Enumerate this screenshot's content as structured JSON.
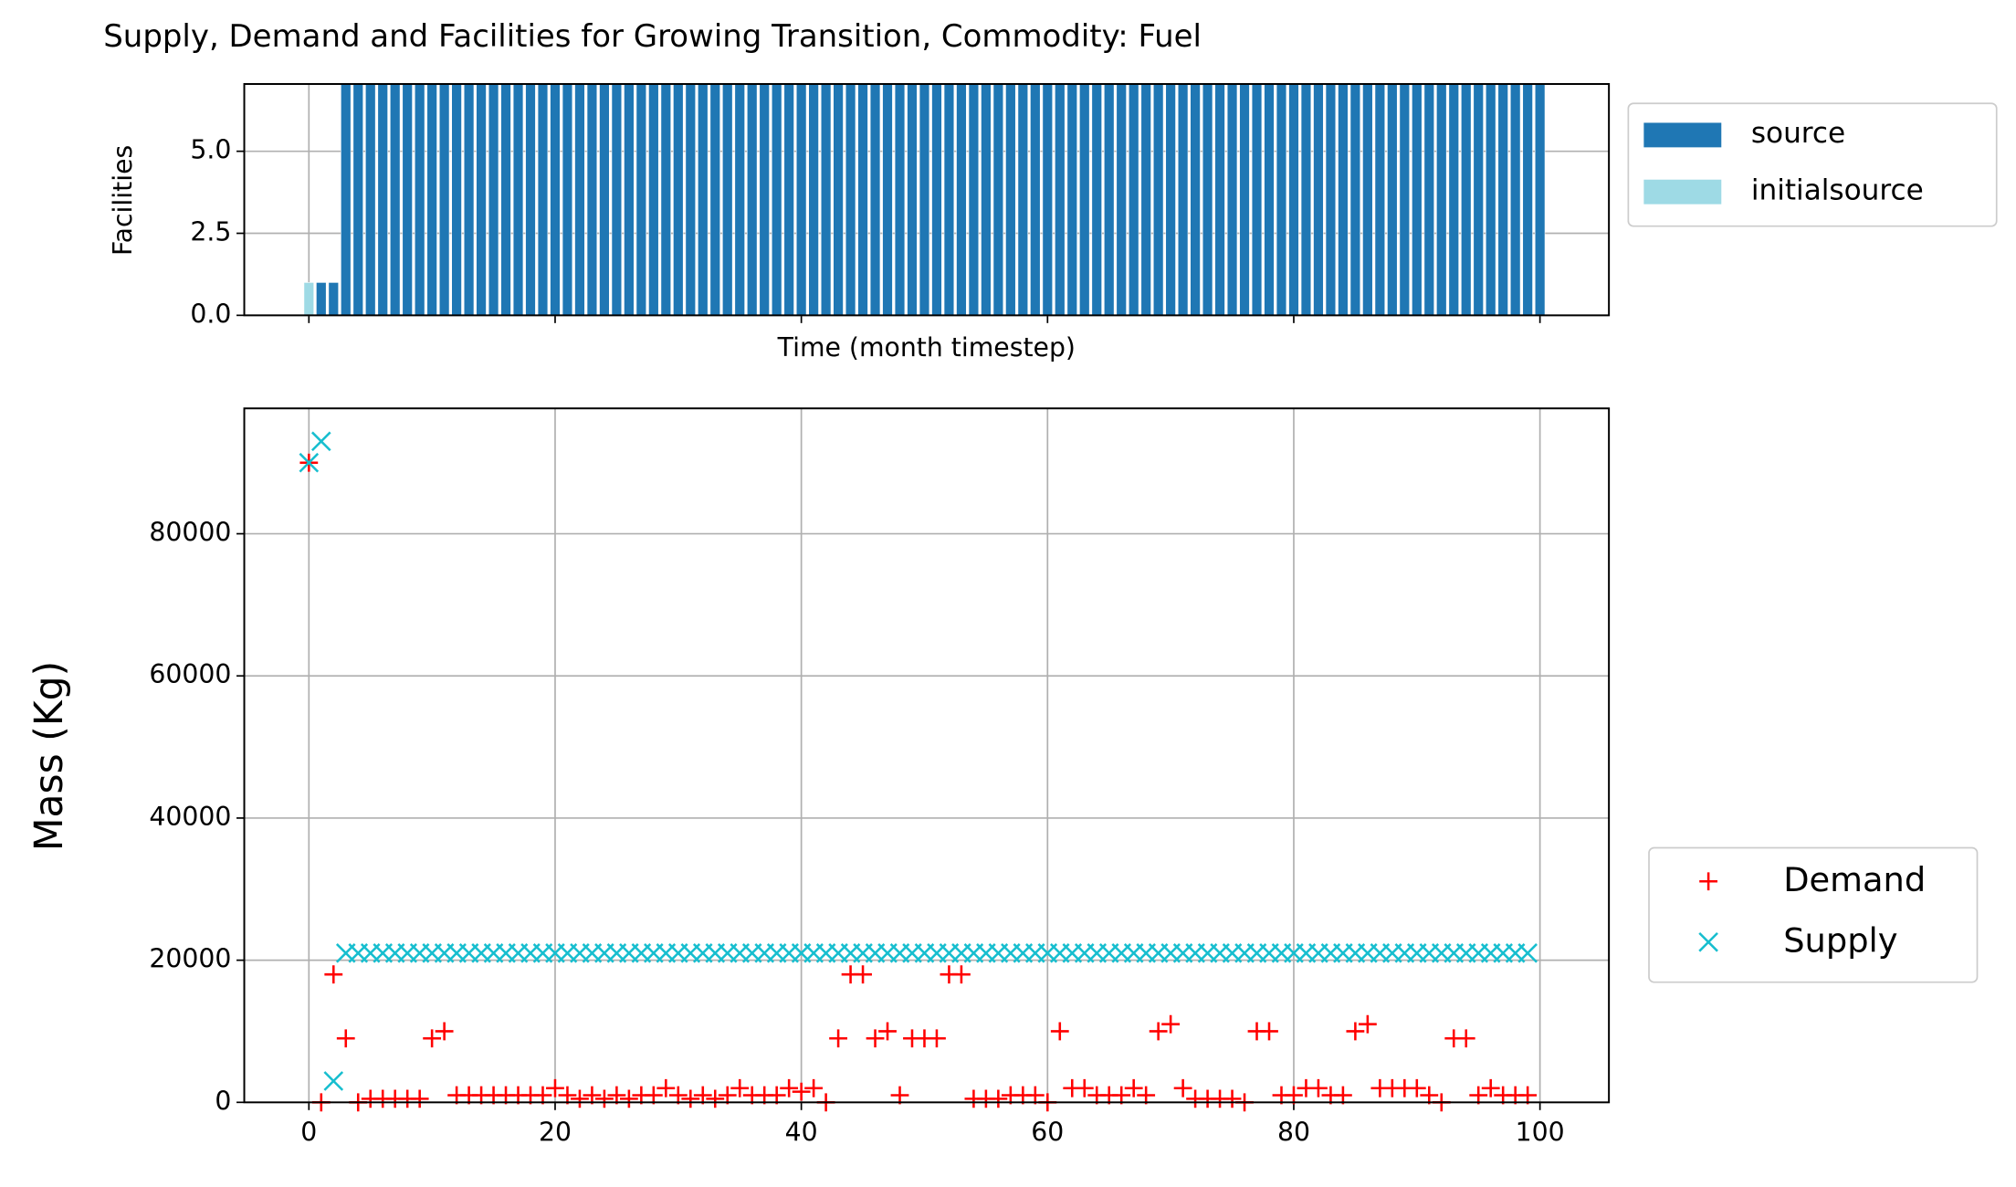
{
  "chart_data": [
    {
      "type": "bar",
      "title": "Supply, Demand and Facilities for Growing Transition, Commodity: Fuel",
      "x_label": "Time (month timestep)",
      "y_label": "Facilities",
      "x": [
        0,
        1,
        2,
        3,
        4,
        5,
        6,
        7,
        8,
        9,
        10,
        11,
        12,
        13,
        14,
        15,
        16,
        17,
        18,
        19,
        20,
        21,
        22,
        23,
        24,
        25,
        26,
        27,
        28,
        29,
        30,
        31,
        32,
        33,
        34,
        35,
        36,
        37,
        38,
        39,
        40,
        41,
        42,
        43,
        44,
        45,
        46,
        47,
        48,
        49,
        50,
        51,
        52,
        53,
        54,
        55,
        56,
        57,
        58,
        59,
        60,
        61,
        62,
        63,
        64,
        65,
        66,
        67,
        68,
        69,
        70,
        71,
        72,
        73,
        74,
        75,
        76,
        77,
        78,
        79,
        80,
        81,
        82,
        83,
        84,
        85,
        86,
        87,
        88,
        89,
        90,
        91,
        92,
        93,
        94,
        95,
        96,
        97,
        98,
        99,
        100
      ],
      "series": [
        {
          "name": "initialsource",
          "color": "#9edae5",
          "values": [
            1,
            0,
            0,
            0,
            0,
            0,
            0,
            0,
            0,
            0,
            0,
            0,
            0,
            0,
            0,
            0,
            0,
            0,
            0,
            0,
            0,
            0,
            0,
            0,
            0,
            0,
            0,
            0,
            0,
            0,
            0,
            0,
            0,
            0,
            0,
            0,
            0,
            0,
            0,
            0,
            0,
            0,
            0,
            0,
            0,
            0,
            0,
            0,
            0,
            0,
            0,
            0,
            0,
            0,
            0,
            0,
            0,
            0,
            0,
            0,
            0,
            0,
            0,
            0,
            0,
            0,
            0,
            0,
            0,
            0,
            0,
            0,
            0,
            0,
            0,
            0,
            0,
            0,
            0,
            0,
            0,
            0,
            0,
            0,
            0,
            0,
            0,
            0,
            0,
            0,
            0,
            0,
            0,
            0,
            0,
            0,
            0,
            0,
            0,
            0,
            0
          ]
        },
        {
          "name": "source",
          "color": "#1f77b4",
          "values": [
            0,
            1,
            1,
            8,
            8,
            8,
            8,
            8,
            8,
            8,
            8,
            8,
            8,
            8,
            8,
            8,
            8,
            8,
            8,
            8,
            8,
            8,
            8,
            8,
            8,
            8,
            8,
            8,
            8,
            8,
            8,
            8,
            8,
            8,
            8,
            8,
            8,
            8,
            8,
            8,
            8,
            8,
            8,
            8,
            8,
            8,
            8,
            8,
            8,
            8,
            8,
            8,
            8,
            8,
            8,
            8,
            8,
            8,
            8,
            8,
            8,
            8,
            8,
            8,
            8,
            8,
            8,
            8,
            8,
            8,
            8,
            8,
            8,
            8,
            8,
            8,
            8,
            8,
            8,
            8,
            8,
            8,
            8,
            8,
            8,
            8,
            8,
            8,
            8,
            8,
            8,
            8,
            8,
            8,
            8,
            8,
            8,
            8,
            8,
            8,
            8
          ]
        }
      ],
      "legend_order": [
        1,
        0
      ],
      "xlim": [
        -5.25,
        105.6
      ],
      "xticks": [
        0,
        20,
        40,
        60,
        80,
        100
      ],
      "ylim": [
        0,
        7.05
      ],
      "yticks": [
        {
          "value": 0,
          "label": "0.0"
        },
        {
          "value": 2.5,
          "label": "2.5"
        },
        {
          "value": 5,
          "label": "5.0"
        }
      ],
      "grid": true,
      "stacked": true,
      "legend": "outside upper right"
    },
    {
      "type": "scatter",
      "y_label": "Mass (Kg)",
      "x": [
        0,
        1,
        2,
        3,
        4,
        5,
        6,
        7,
        8,
        9,
        10,
        11,
        12,
        13,
        14,
        15,
        16,
        17,
        18,
        19,
        20,
        21,
        22,
        23,
        24,
        25,
        26,
        27,
        28,
        29,
        30,
        31,
        32,
        33,
        34,
        35,
        36,
        37,
        38,
        39,
        40,
        41,
        42,
        43,
        44,
        45,
        46,
        47,
        48,
        49,
        50,
        51,
        52,
        53,
        54,
        55,
        56,
        57,
        58,
        59,
        60,
        61,
        62,
        63,
        64,
        65,
        66,
        67,
        68,
        69,
        70,
        71,
        72,
        73,
        74,
        75,
        76,
        77,
        78,
        79,
        80,
        81,
        82,
        83,
        84,
        85,
        86,
        87,
        88,
        89,
        90,
        91,
        92,
        93,
        94,
        95,
        96,
        97,
        98,
        99
      ],
      "series": [
        {
          "name": "Demand",
          "color": "#ff0000",
          "marker": "+",
          "values": [
            90000,
            0,
            18000,
            9000,
            0,
            500,
            500,
            500,
            500,
            500,
            9000,
            10000,
            1000,
            1000,
            1000,
            1000,
            1000,
            1000,
            1000,
            1000,
            2000,
            1000,
            500,
            1000,
            500,
            1000,
            500,
            1000,
            1000,
            2000,
            1000,
            500,
            1000,
            500,
            1000,
            2000,
            1000,
            1000,
            1000,
            2000,
            1500,
            2000,
            0,
            9000,
            18000,
            18000,
            9000,
            10000,
            1000,
            9000,
            9000,
            9000,
            18000,
            18000,
            500,
            500,
            500,
            1000,
            1000,
            1000,
            0,
            10000,
            2000,
            2000,
            1000,
            1000,
            1000,
            2000,
            1000,
            10000,
            11000,
            2000,
            500,
            500,
            500,
            500,
            0,
            10000,
            10000,
            1000,
            1000,
            2000,
            2000,
            1000,
            1000,
            10000,
            11000,
            2000,
            2000,
            2000,
            2000,
            1000,
            0,
            9000,
            9000,
            1000,
            2000,
            1000,
            1000,
            1000
          ]
        },
        {
          "name": "Supply",
          "color": "#17becf",
          "marker": "x",
          "values": [
            90000,
            93000,
            3000,
            21000,
            21000,
            21000,
            21000,
            21000,
            21000,
            21000,
            21000,
            21000,
            21000,
            21000,
            21000,
            21000,
            21000,
            21000,
            21000,
            21000,
            21000,
            21000,
            21000,
            21000,
            21000,
            21000,
            21000,
            21000,
            21000,
            21000,
            21000,
            21000,
            21000,
            21000,
            21000,
            21000,
            21000,
            21000,
            21000,
            21000,
            21000,
            21000,
            21000,
            21000,
            21000,
            21000,
            21000,
            21000,
            21000,
            21000,
            21000,
            21000,
            21000,
            21000,
            21000,
            21000,
            21000,
            21000,
            21000,
            21000,
            21000,
            21000,
            21000,
            21000,
            21000,
            21000,
            21000,
            21000,
            21000,
            21000,
            21000,
            21000,
            21000,
            21000,
            21000,
            21000,
            21000,
            21000,
            21000,
            21000,
            21000,
            21000,
            21000,
            21000,
            21000,
            21000,
            21000,
            21000,
            21000,
            21000,
            21000,
            21000,
            21000,
            21000,
            21000,
            21000,
            21000,
            21000,
            21000,
            21000
          ]
        }
      ],
      "xlim": [
        -5.25,
        105.6
      ],
      "xticks": [
        0,
        20,
        40,
        60,
        80,
        100
      ],
      "ylim": [
        0,
        97640
      ],
      "yticks": [
        0,
        20000,
        40000,
        60000,
        80000
      ],
      "grid": true,
      "legend": "outside lower right"
    }
  ]
}
